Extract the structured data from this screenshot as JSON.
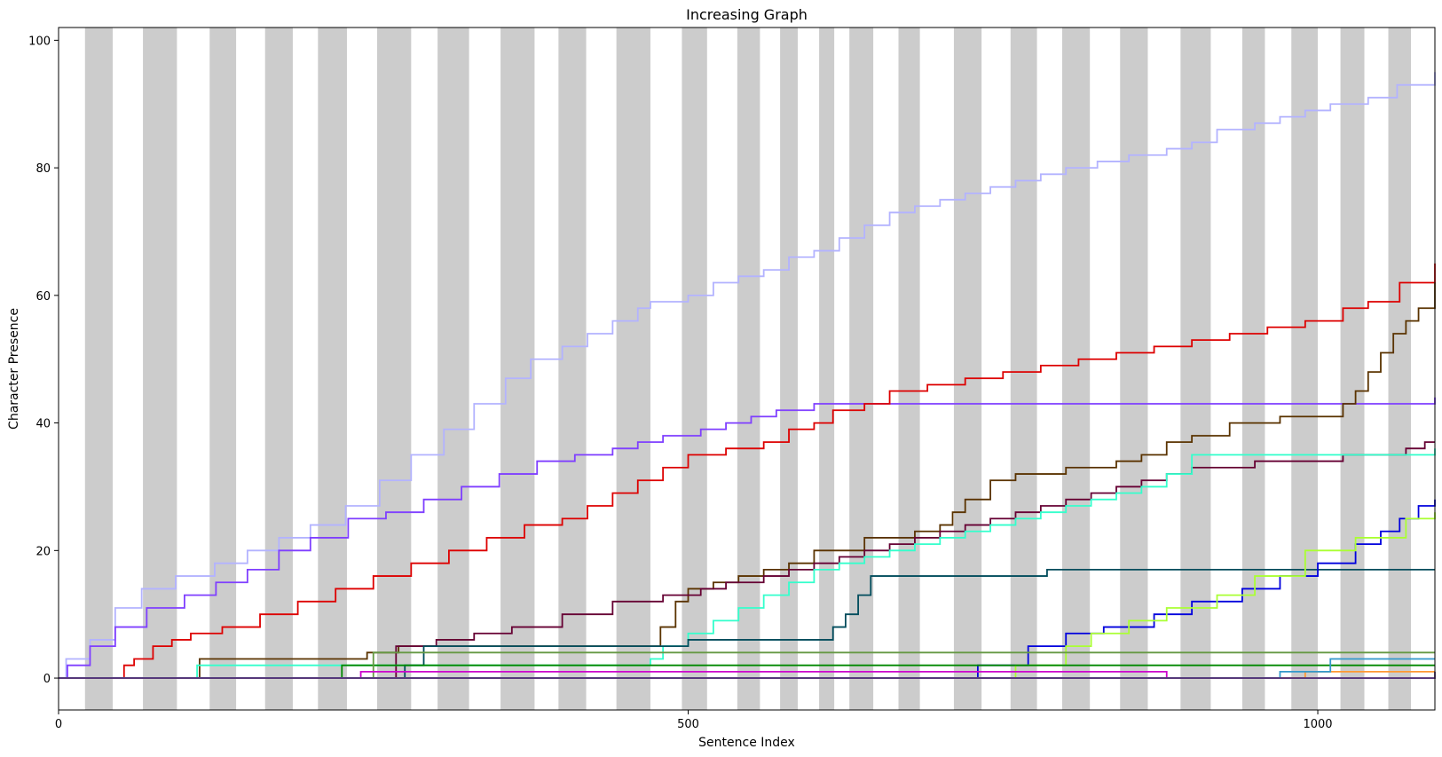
{
  "chart_data": {
    "type": "line",
    "title": "Increasing Graph",
    "xlabel": "Sentence Index",
    "ylabel": "Character Presence",
    "xlim": [
      0,
      1093
    ],
    "ylim": [
      -5,
      102
    ],
    "x_ticks": [
      0,
      500,
      1000
    ],
    "y_ticks": [
      0,
      20,
      40,
      60,
      80,
      100
    ],
    "grid": false,
    "legend": "none",
    "shaded_bands": [
      [
        21,
        43
      ],
      [
        67,
        94
      ],
      [
        120,
        141
      ],
      [
        164,
        186
      ],
      [
        206,
        229
      ],
      [
        253,
        280
      ],
      [
        301,
        326
      ],
      [
        351,
        378
      ],
      [
        397,
        419
      ],
      [
        443,
        470
      ],
      [
        495,
        515
      ],
      [
        539,
        557
      ],
      [
        573,
        587
      ],
      [
        604,
        616
      ],
      [
        628,
        647
      ],
      [
        667,
        684
      ],
      [
        711,
        733
      ],
      [
        756,
        777
      ],
      [
        797,
        819
      ],
      [
        843,
        865
      ],
      [
        891,
        915
      ],
      [
        940,
        958
      ],
      [
        979,
        1000
      ],
      [
        1018,
        1037
      ],
      [
        1056,
        1074
      ]
    ],
    "series": [
      {
        "color": "#b3b3ff",
        "x": [
          0,
          6,
          12,
          25,
          45,
          66,
          93,
          124,
          150,
          175,
          200,
          228,
          255,
          280,
          306,
          330,
          355,
          375,
          400,
          420,
          440,
          460,
          470,
          500,
          520,
          540,
          560,
          580,
          600,
          620,
          640,
          660,
          680,
          700,
          720,
          740,
          760,
          780,
          800,
          825,
          850,
          880,
          900,
          920,
          950,
          970,
          990,
          1010,
          1040,
          1063,
          1093
        ],
        "y": [
          0,
          3,
          3,
          6,
          11,
          14,
          16,
          18,
          20,
          22,
          24,
          27,
          31,
          35,
          39,
          43,
          47,
          50,
          52,
          54,
          56,
          58,
          59,
          60,
          62,
          63,
          64,
          66,
          67,
          69,
          71,
          73,
          74,
          75,
          76,
          77,
          78,
          79,
          80,
          81,
          82,
          83,
          84,
          86,
          87,
          88,
          89,
          90,
          91,
          93,
          95
        ]
      },
      {
        "color": "#7f3fff",
        "x": [
          0,
          7,
          12,
          25,
          45,
          70,
          100,
          125,
          150,
          175,
          200,
          230,
          260,
          290,
          320,
          350,
          380,
          410,
          440,
          460,
          480,
          510,
          530,
          550,
          570,
          600,
          1093
        ],
        "y": [
          0,
          2,
          2,
          5,
          8,
          11,
          13,
          15,
          17,
          20,
          22,
          25,
          26,
          28,
          30,
          32,
          34,
          35,
          36,
          37,
          38,
          39,
          40,
          41,
          42,
          43,
          44
        ]
      },
      {
        "color": "#dd0000",
        "x": [
          0,
          52,
          60,
          75,
          90,
          105,
          130,
          160,
          190,
          220,
          250,
          280,
          310,
          340,
          370,
          400,
          420,
          440,
          460,
          480,
          500,
          530,
          560,
          580,
          600,
          615,
          640,
          660,
          690,
          720,
          750,
          780,
          810,
          840,
          870,
          900,
          930,
          960,
          990,
          1020,
          1040,
          1065,
          1093
        ],
        "y": [
          0,
          2,
          3,
          5,
          6,
          7,
          8,
          10,
          12,
          14,
          16,
          18,
          20,
          22,
          24,
          25,
          27,
          29,
          31,
          33,
          35,
          36,
          37,
          39,
          40,
          42,
          43,
          45,
          46,
          47,
          48,
          49,
          50,
          51,
          52,
          53,
          54,
          55,
          56,
          58,
          59,
          62,
          65
        ]
      },
      {
        "color": "#5a3300",
        "x": [
          0,
          112,
          245,
          270,
          470,
          478,
          490,
          500,
          520,
          540,
          560,
          580,
          600,
          640,
          680,
          700,
          710,
          720,
          740,
          760,
          800,
          840,
          860,
          880,
          900,
          930,
          970,
          1010,
          1020,
          1030,
          1040,
          1050,
          1060,
          1070,
          1080,
          1093
        ],
        "y": [
          0,
          3,
          4,
          5,
          5,
          8,
          12,
          14,
          15,
          16,
          17,
          18,
          20,
          22,
          23,
          24,
          26,
          28,
          31,
          32,
          33,
          34,
          35,
          37,
          38,
          40,
          41,
          41,
          43,
          45,
          48,
          51,
          54,
          56,
          58,
          62
        ]
      },
      {
        "color": "#660033",
        "x": [
          0,
          268,
          300,
          330,
          360,
          400,
          440,
          480,
          510,
          530,
          560,
          580,
          600,
          620,
          640,
          660,
          680,
          700,
          720,
          740,
          760,
          780,
          800,
          820,
          840,
          860,
          880,
          900,
          950,
          990,
          1020,
          1050,
          1070,
          1085,
          1093
        ],
        "y": [
          0,
          5,
          6,
          7,
          8,
          10,
          12,
          13,
          14,
          15,
          16,
          17,
          18,
          19,
          20,
          21,
          22,
          23,
          24,
          25,
          26,
          27,
          28,
          29,
          30,
          31,
          32,
          33,
          34,
          34,
          35,
          35,
          36,
          37,
          37
        ]
      },
      {
        "color": "#33ffcc",
        "x": [
          0,
          110,
          240,
          470,
          480,
          500,
          520,
          540,
          560,
          580,
          600,
          620,
          640,
          660,
          680,
          700,
          720,
          740,
          760,
          780,
          800,
          820,
          840,
          860,
          880,
          900,
          1093
        ],
        "y": [
          0,
          2,
          2,
          3,
          5,
          7,
          9,
          11,
          13,
          15,
          17,
          18,
          19,
          20,
          21,
          22,
          23,
          24,
          25,
          26,
          27,
          28,
          29,
          30,
          32,
          35,
          36
        ]
      },
      {
        "color": "#004c5c",
        "x": [
          0,
          275,
          290,
          490,
          500,
          580,
          615,
          625,
          635,
          645,
          750,
          785,
          1093
        ],
        "y": [
          0,
          2,
          5,
          5,
          6,
          6,
          8,
          10,
          13,
          16,
          16,
          17,
          17
        ]
      },
      {
        "color": "#0000dd",
        "x": [
          0,
          730,
          770,
          800,
          830,
          870,
          900,
          940,
          970,
          1000,
          1030,
          1050,
          1065,
          1080,
          1093
        ],
        "y": [
          0,
          2,
          5,
          7,
          8,
          10,
          12,
          14,
          16,
          18,
          21,
          23,
          25,
          27,
          28
        ]
      },
      {
        "color": "#aaff33",
        "x": [
          0,
          760,
          800,
          820,
          850,
          880,
          920,
          950,
          990,
          1030,
          1070,
          1093
        ],
        "y": [
          0,
          2,
          5,
          7,
          9,
          11,
          13,
          16,
          20,
          22,
          25,
          26
        ]
      },
      {
        "color": "#008800",
        "x": [
          0,
          225,
          740,
          1093
        ],
        "y": [
          0,
          2,
          2,
          2
        ]
      },
      {
        "color": "#669944",
        "x": [
          0,
          250,
          1093
        ],
        "y": [
          0,
          4,
          4
        ]
      },
      {
        "color": "#cc00cc",
        "x": [
          0,
          240,
          870,
          880
        ],
        "y": [
          0,
          1,
          1,
          0
        ]
      },
      {
        "color": "#ff9933",
        "x": [
          0,
          870,
          990,
          1093
        ],
        "y": [
          0,
          0,
          1,
          1
        ]
      },
      {
        "color": "#3399cc",
        "x": [
          0,
          970,
          1010,
          1093
        ],
        "y": [
          0,
          1,
          3,
          3
        ]
      },
      {
        "color": "#553377",
        "x": [
          0,
          1093
        ],
        "y": [
          0,
          1
        ]
      }
    ]
  }
}
